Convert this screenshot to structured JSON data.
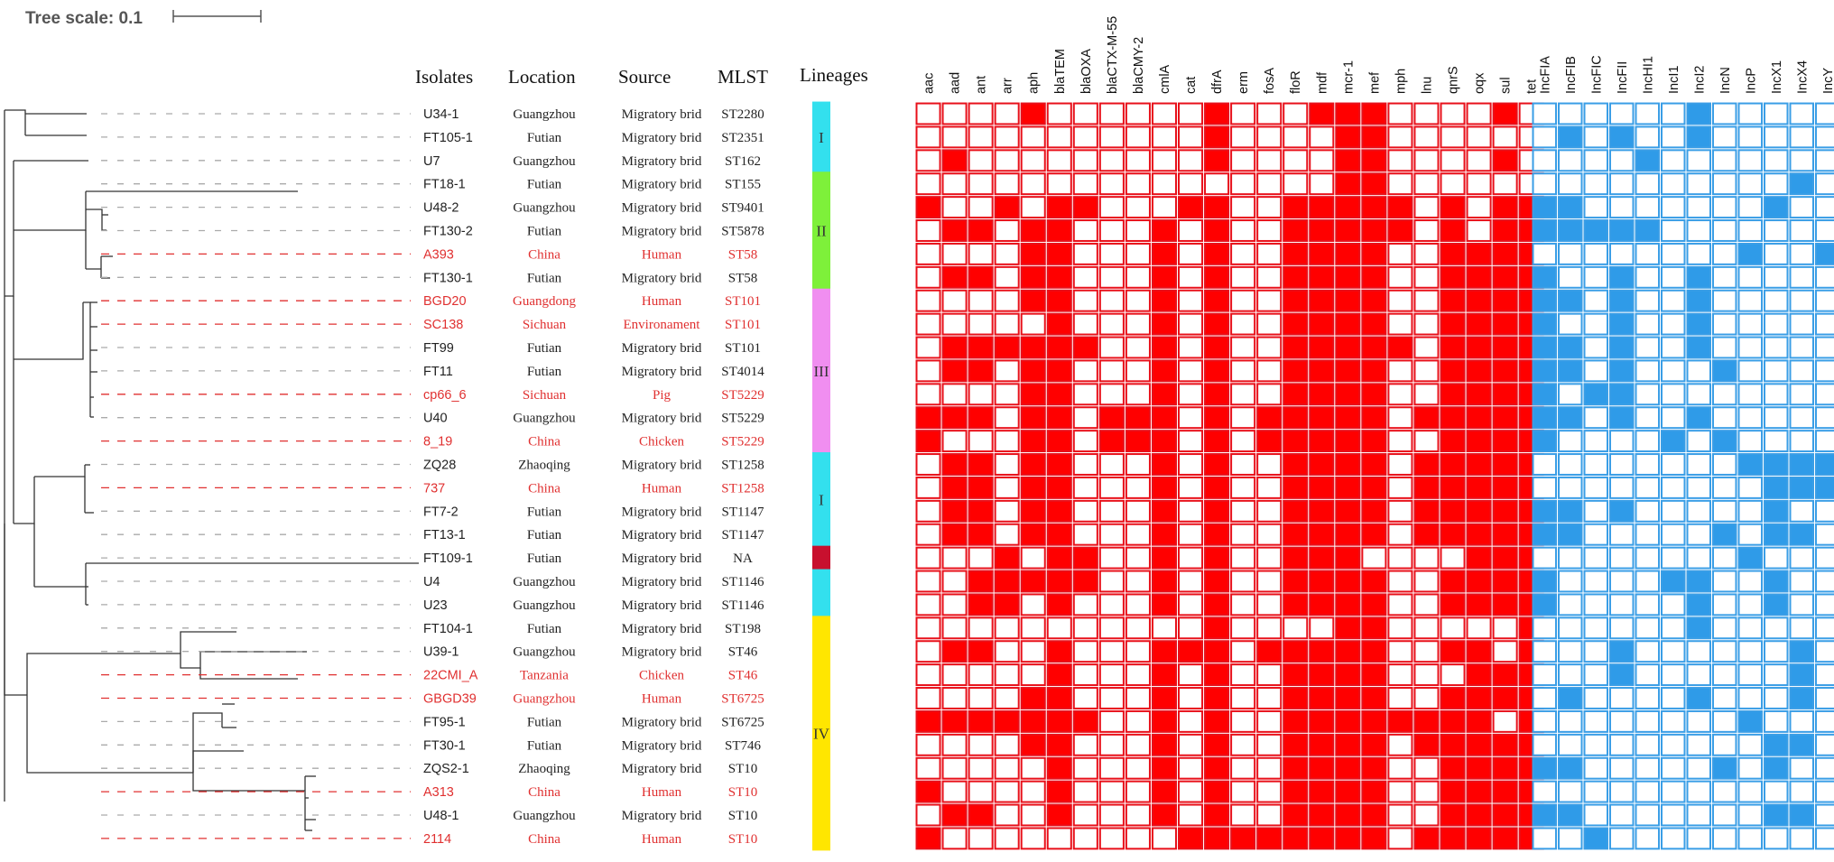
{
  "tree_scale": {
    "label": "Tree scale: 0.1"
  },
  "headers": {
    "isolates": "Isolates",
    "location": "Location",
    "source": "Source",
    "mlst": "MLST",
    "lineages": "Lineages"
  },
  "colors": {
    "highlight_text": "#e03030",
    "normal_text": "#222222",
    "arg_fill": "#ff0000",
    "arg_border": "#e8101a",
    "plasmid_fill": "#2f9be8",
    "plasmid_border": "#3a9ee6",
    "tree_line": "#333333",
    "leader_normal": "#aaaaaa",
    "leader_highlight": "#e03030"
  },
  "isolates": [
    {
      "name": "U34-1",
      "location": "Guangzhou",
      "source": "Migratory brid",
      "mlst": "ST2280",
      "highlight": false
    },
    {
      "name": "FT105-1",
      "location": "Futian",
      "source": "Migratory brid",
      "mlst": "ST2351",
      "highlight": false
    },
    {
      "name": "U7",
      "location": "Guangzhou",
      "source": "Migratory brid",
      "mlst": "ST162",
      "highlight": false
    },
    {
      "name": "FT18-1",
      "location": "Futian",
      "source": "Migratory brid",
      "mlst": "ST155",
      "highlight": false
    },
    {
      "name": "U48-2",
      "location": "Guangzhou",
      "source": "Migratory brid",
      "mlst": "ST9401",
      "highlight": false
    },
    {
      "name": "FT130-2",
      "location": "Futian",
      "source": "Migratory brid",
      "mlst": "ST5878",
      "highlight": false
    },
    {
      "name": "A393",
      "location": "China",
      "source": "Human",
      "mlst": "ST58",
      "highlight": true
    },
    {
      "name": "FT130-1",
      "location": "Futian",
      "source": "Migratory brid",
      "mlst": "ST58",
      "highlight": false
    },
    {
      "name": "BGD20",
      "location": "Guangdong",
      "source": "Human",
      "mlst": "ST101",
      "highlight": true
    },
    {
      "name": "SC138",
      "location": "Sichuan",
      "source": "Environament",
      "mlst": "ST101",
      "highlight": true
    },
    {
      "name": "FT99",
      "location": "Futian",
      "source": "Migratory brid",
      "mlst": "ST101",
      "highlight": false
    },
    {
      "name": "FT11",
      "location": "Futian",
      "source": "Migratory brid",
      "mlst": "ST4014",
      "highlight": false
    },
    {
      "name": "cp66_6",
      "location": "Sichuan",
      "source": "Pig",
      "mlst": "ST5229",
      "highlight": true
    },
    {
      "name": "U40",
      "location": "Guangzhou",
      "source": "Migratory brid",
      "mlst": "ST5229",
      "highlight": false
    },
    {
      "name": "8_19",
      "location": "China",
      "source": "Chicken",
      "mlst": "ST5229",
      "highlight": true
    },
    {
      "name": "ZQ28",
      "location": "Zhaoqing",
      "source": "Migratory brid",
      "mlst": "ST1258",
      "highlight": false
    },
    {
      "name": "737",
      "location": "China",
      "source": "Human",
      "mlst": "ST1258",
      "highlight": true
    },
    {
      "name": "FT7-2",
      "location": "Futian",
      "source": "Migratory brid",
      "mlst": "ST1147",
      "highlight": false
    },
    {
      "name": "FT13-1",
      "location": "Futian",
      "source": "Migratory brid",
      "mlst": "ST1147",
      "highlight": false
    },
    {
      "name": "FT109-1",
      "location": "Futian",
      "source": "Migratory brid",
      "mlst": "NA",
      "highlight": false
    },
    {
      "name": "U4",
      "location": "Guangzhou",
      "source": "Migratory brid",
      "mlst": "ST1146",
      "highlight": false
    },
    {
      "name": "U23",
      "location": "Guangzhou",
      "source": "Migratory brid",
      "mlst": "ST1146",
      "highlight": false
    },
    {
      "name": "FT104-1",
      "location": "Futian",
      "source": "Migratory brid",
      "mlst": "ST198",
      "highlight": false
    },
    {
      "name": "U39-1",
      "location": "Guangzhou",
      "source": "Migratory brid",
      "mlst": "ST46",
      "highlight": false
    },
    {
      "name": "22CMI_A",
      "location": "Tanzania",
      "source": "Chicken",
      "mlst": "ST46",
      "highlight": true
    },
    {
      "name": "GBGD39",
      "location": "Guangzhou",
      "source": "Human",
      "mlst": "ST6725",
      "highlight": true
    },
    {
      "name": "FT95-1",
      "location": "Futian",
      "source": "Migratory brid",
      "mlst": "ST6725",
      "highlight": false
    },
    {
      "name": "FT30-1",
      "location": "Futian",
      "source": "Migratory brid",
      "mlst": "ST746",
      "highlight": false
    },
    {
      "name": "ZQS2-1",
      "location": "Zhaoqing",
      "source": "Migratory brid",
      "mlst": "ST10",
      "highlight": false
    },
    {
      "name": "A313",
      "location": "China",
      "source": "Human",
      "mlst": "ST10",
      "highlight": true
    },
    {
      "name": "U48-1",
      "location": "Guangzhou",
      "source": "Migratory brid",
      "mlst": "ST10",
      "highlight": false
    },
    {
      "name": "2114",
      "location": "China",
      "source": "Human",
      "mlst": "ST10",
      "highlight": true
    }
  ],
  "lineages": [
    {
      "label": "I",
      "from": 0,
      "to": 2,
      "color": "#33e0ee"
    },
    {
      "label": "II",
      "from": 3,
      "to": 7,
      "color": "#7ef03a"
    },
    {
      "label": "III",
      "from": 8,
      "to": 14,
      "color": "#f08ef0"
    },
    {
      "label": "I",
      "from": 15,
      "to": 18,
      "color": "#33e0ee"
    },
    {
      "label": "",
      "from": 19,
      "to": 19,
      "color": "#c8102e"
    },
    {
      "label": "",
      "from": 20,
      "to": 21,
      "color": "#33e0ee"
    },
    {
      "label": "IV",
      "from": 22,
      "to": 31,
      "color": "#ffe600"
    }
  ],
  "arg_genes": [
    "aac",
    "aad",
    "ant",
    "arr",
    "aph",
    "blaTEM",
    "blaOXA",
    "blaCTX-M-55",
    "blaCMY-2",
    "cmlA",
    "cat",
    "dfrA",
    "erm",
    "fosA",
    "floR",
    "mdf",
    "mcr-1",
    "mef",
    "mph",
    "lnu",
    "qnrS",
    "oqx",
    "sul",
    "tet"
  ],
  "arg_matrix": [
    "000010000001000111000010",
    "000000000001000011000000",
    "010000000001000011000010",
    "000000000000000011000000",
    "100101100011001111101011",
    "011011000101001111101011",
    "000011000101001111001111",
    "011011000101001111001111",
    "000011000101001111001111",
    "000001000101001111001111",
    "011111100101001111101111",
    "011011000101001111001111",
    "000011000101001111001111",
    "111011011101011111011111",
    "100011011101011111001111",
    "011011000101001111011111",
    "011011000101001111011111",
    "011011000101001111011111",
    "011011000101001111011111",
    "000101100101001110000111",
    "001111100101001111001111",
    "001101000101001111001111",
    "000000000001000011000001",
    "011001000111011111001101",
    "000001000101001111000111",
    "000011000101001111001111",
    "111111100101001111111101",
    "000011000101001111011111",
    "000001000101001111001111",
    "100001000101001111001111",
    "011001000101001111001111",
    "100000000011111111011111"
  ],
  "plasmid_genes": [
    "IncFIA",
    "IncFIB",
    "IncFIC",
    "IncFII",
    "IncHI1",
    "IncI1",
    "IncI2",
    "IncN",
    "IncP",
    "IncX1",
    "IncX4",
    "IncY"
  ],
  "plasmid_matrix": [
    "000000100000",
    "010100100000",
    "000010000000",
    "000000000010",
    "110000000100",
    "111110000000",
    "000000001001",
    "100100100000",
    "110100100000",
    "100100100000",
    "110100100000",
    "110100010000",
    "101100000000",
    "110100100000",
    "100001010000",
    "000000001111",
    "000000000111",
    "110100000100",
    "110000010110",
    "000000001000",
    "100001100100",
    "100000100100",
    "000000100000",
    "000100000010",
    "000100000010",
    "010000100010",
    "000000001000",
    "000000000110",
    "110000010100",
    "000000000000",
    "110000000110",
    "001000000000"
  ]
}
